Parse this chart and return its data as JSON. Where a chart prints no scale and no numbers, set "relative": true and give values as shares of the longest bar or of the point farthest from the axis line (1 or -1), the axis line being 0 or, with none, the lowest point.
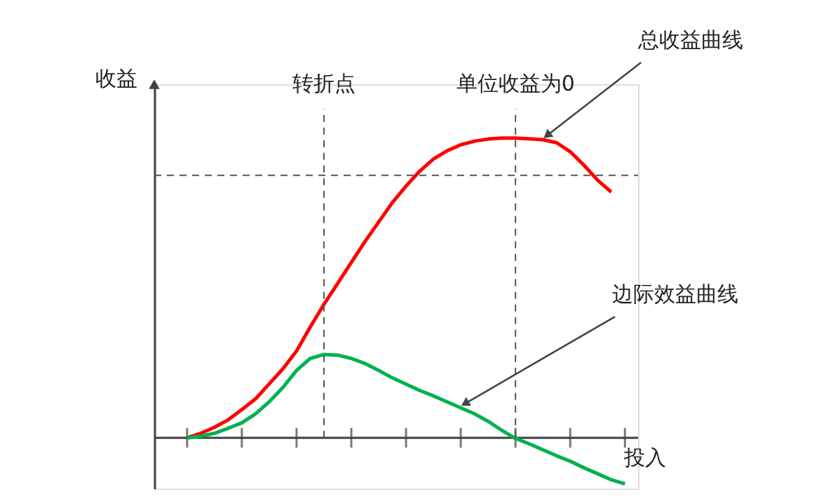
{
  "chart_data": {
    "type": "line",
    "relative": true,
    "xlabel": "投入",
    "ylabel": "收益",
    "grid": false,
    "marker": "none",
    "line_style": "solid",
    "categories": [
      null,
      null,
      null,
      null,
      null,
      null,
      null,
      null,
      null,
      null,
      null,
      null,
      null,
      null,
      null,
      null,
      null,
      null,
      null,
      null,
      null,
      null,
      null,
      null,
      null,
      null,
      null,
      null,
      null,
      null,
      null,
      null,
      null
    ],
    "series": [
      {
        "color": "#ff0000",
        "values": [
          0,
          0.015,
          0.035,
          0.06,
          0.094,
          0.13,
          0.18,
          0.23,
          0.29,
          0.37,
          0.445,
          0.515,
          0.585,
          0.655,
          0.72,
          0.785,
          0.84,
          0.89,
          0.93,
          0.958,
          0.978,
          0.99,
          0.997,
          1,
          1,
          0.998,
          0.995,
          0.985,
          0.955,
          0.91,
          0.86,
          0.82,
          null
        ]
      },
      {
        "color": "#00b050",
        "values": [
          0,
          0.005,
          0.015,
          0.032,
          0.05,
          0.08,
          0.12,
          0.168,
          0.225,
          0.265,
          0.278,
          0.276,
          0.265,
          0.248,
          0.225,
          0.2,
          0.179,
          0.158,
          0.14,
          0.12,
          0.1,
          0.08,
          0.055,
          0.025,
          -0.002,
          -0.02,
          -0.04,
          -0.06,
          -0.078,
          -0.1,
          -0.12,
          -0.14,
          -0.154
        ]
      }
    ],
    "ref_lines": [
      {
        "axis": "y",
        "value": 0.876,
        "color": "#555555",
        "line_style": "dashed"
      }
    ],
    "annotations": [
      "转折点",
      "单位收益为0",
      "总收益曲线",
      "边际效益曲线"
    ]
  }
}
